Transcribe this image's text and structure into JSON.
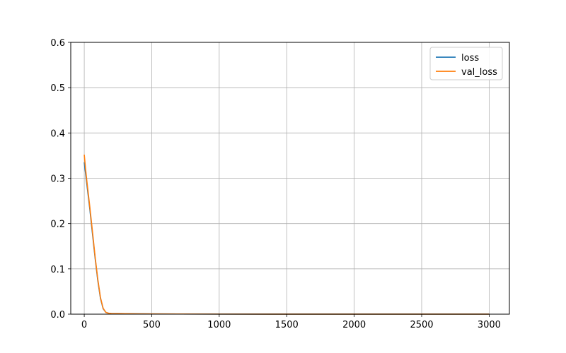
{
  "chart_data": {
    "type": "line",
    "title": "",
    "xlabel": "",
    "ylabel": "",
    "xlim": [
      -100,
      3150
    ],
    "ylim": [
      0,
      0.6
    ],
    "xticks": [
      0,
      500,
      1000,
      1500,
      2000,
      2500,
      3000
    ],
    "yticks": [
      0.0,
      0.1,
      0.2,
      0.3,
      0.4,
      0.5,
      0.6
    ],
    "xtick_labels": [
      "0",
      "500",
      "1000",
      "1500",
      "2000",
      "2500",
      "3000"
    ],
    "ytick_labels": [
      "0.0",
      "0.1",
      "0.2",
      "0.3",
      "0.4",
      "0.5",
      "0.6"
    ],
    "grid": true,
    "legend_position": "top-right",
    "series": [
      {
        "name": "loss",
        "color": "#1f77b4",
        "x": [
          0,
          10,
          20,
          40,
          60,
          80,
          100,
          120,
          140,
          160,
          180,
          200,
          250,
          300,
          400,
          500,
          700,
          1000,
          1500,
          2000,
          2500,
          3000
        ],
        "y": [
          0.335,
          0.31,
          0.285,
          0.235,
          0.18,
          0.125,
          0.075,
          0.035,
          0.012,
          0.004,
          0.002,
          0.0015,
          0.0012,
          0.001,
          0.0008,
          0.0006,
          0.0004,
          0.0002,
          0.0001,
          0.0001,
          0.0001,
          0.0001
        ]
      },
      {
        "name": "val_loss",
        "color": "#ff7f0e",
        "x": [
          0,
          10,
          20,
          40,
          60,
          80,
          100,
          120,
          140,
          160,
          180,
          200,
          250,
          300,
          400,
          500,
          700,
          1000,
          1500,
          2000,
          2500,
          3000
        ],
        "y": [
          0.352,
          0.32,
          0.292,
          0.24,
          0.185,
          0.128,
          0.078,
          0.037,
          0.013,
          0.004,
          0.002,
          0.0015,
          0.0012,
          0.001,
          0.0008,
          0.0006,
          0.0004,
          0.0002,
          0.0001,
          0.0001,
          0.0001,
          0.0001
        ]
      }
    ]
  }
}
